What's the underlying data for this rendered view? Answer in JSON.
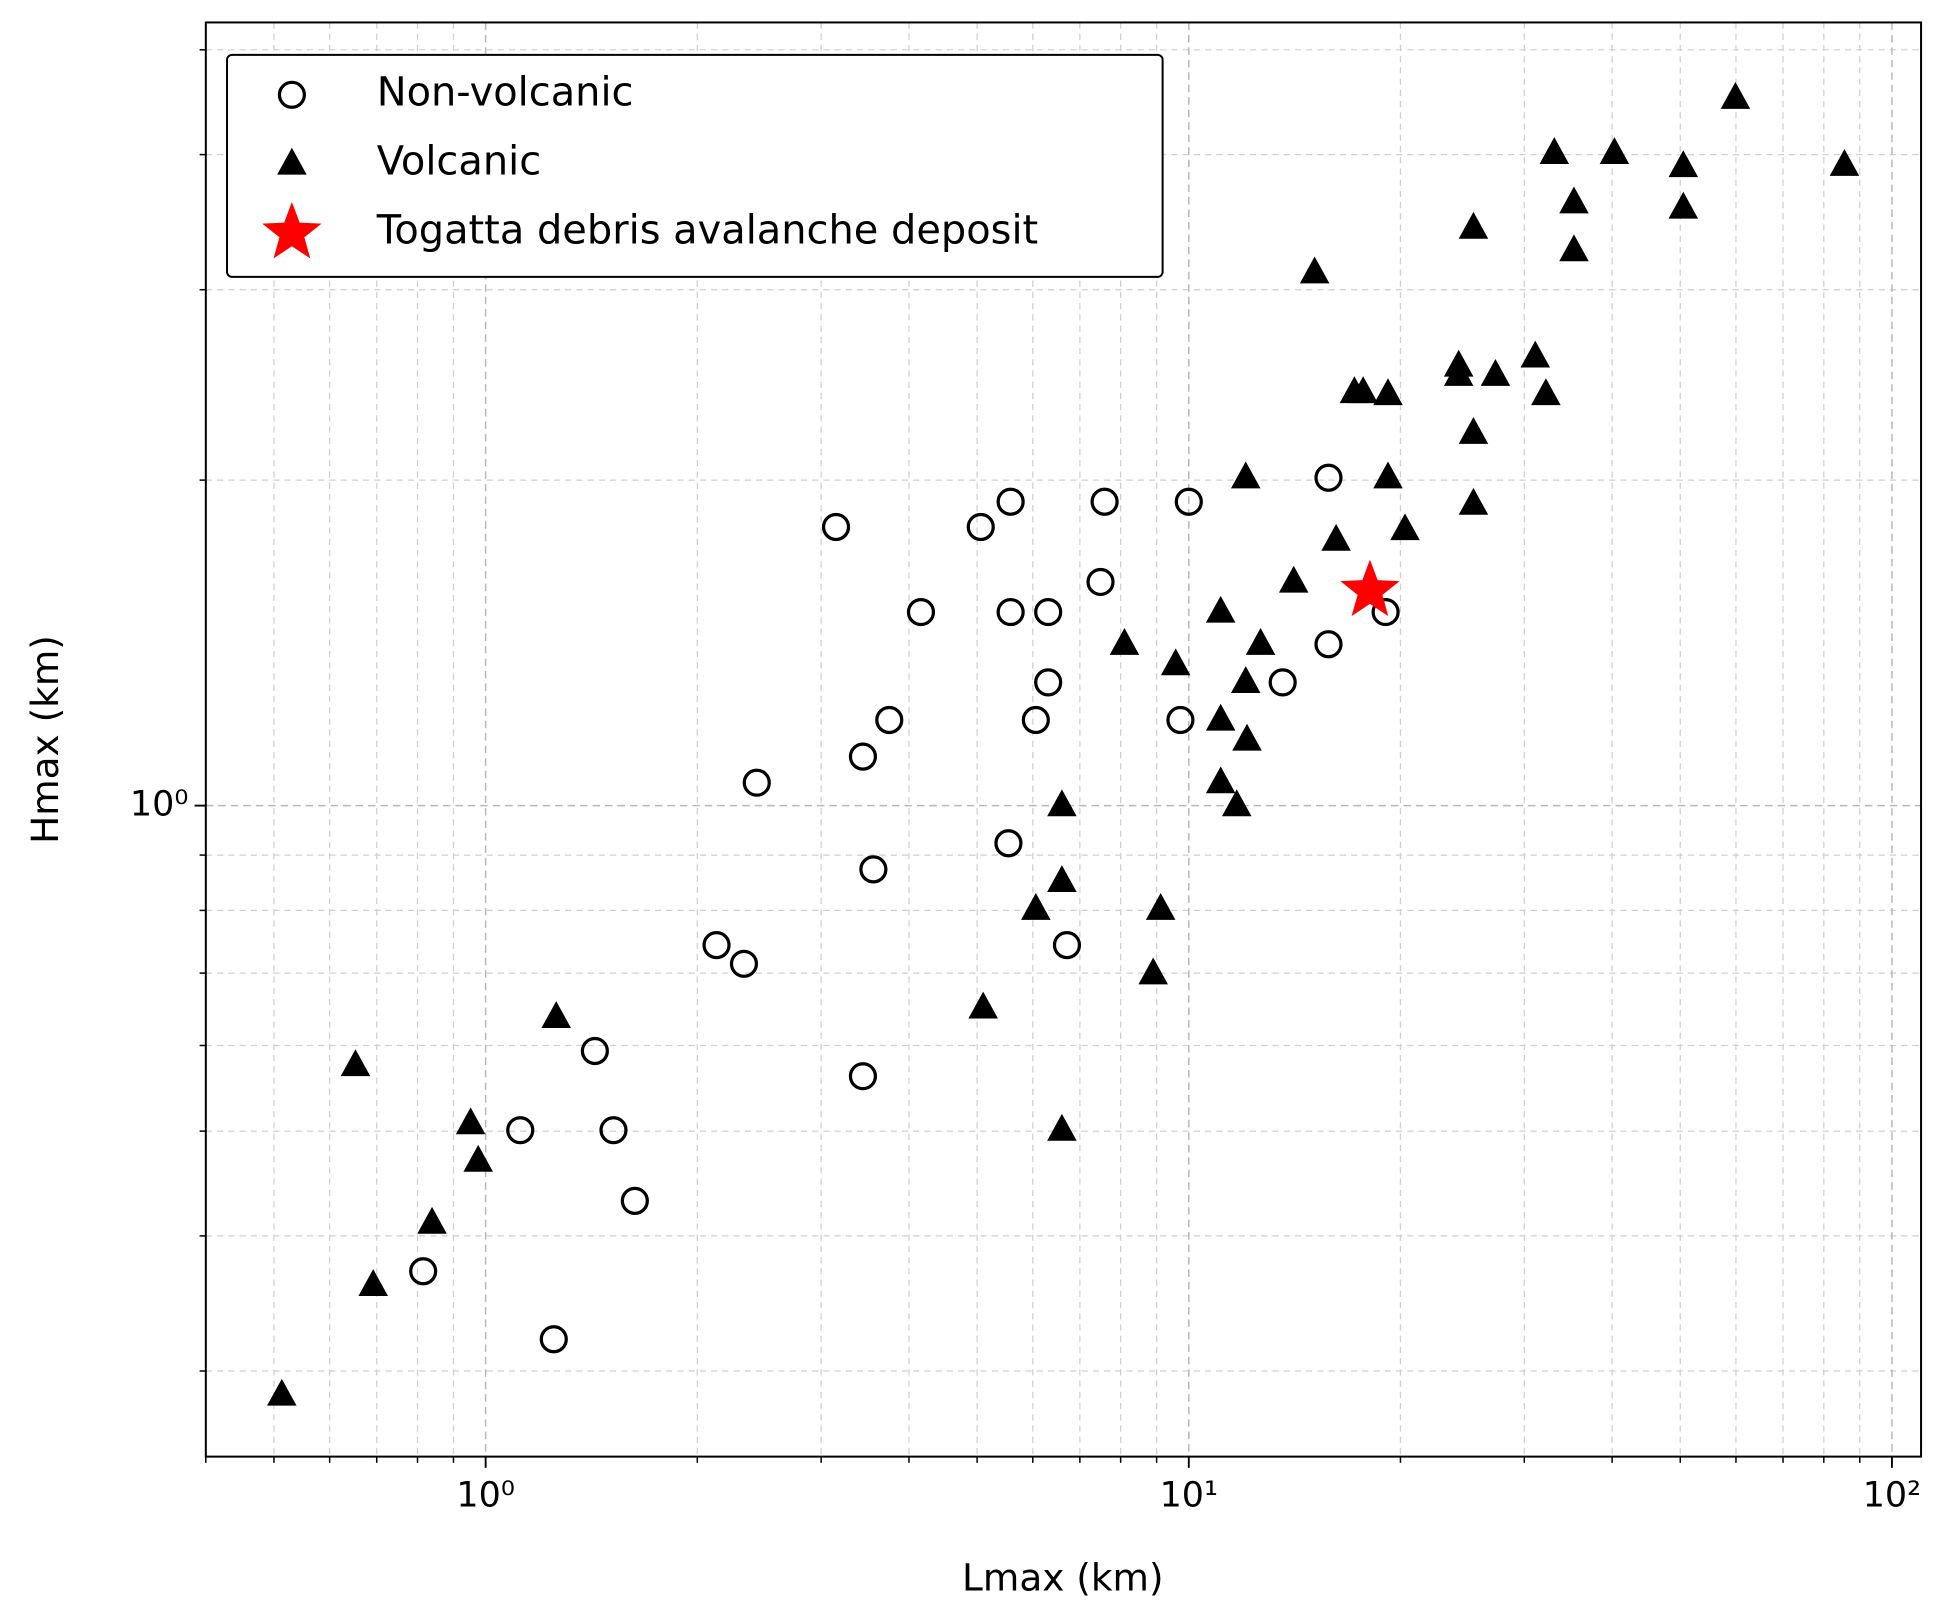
{
  "chart_data": {
    "type": "scatter",
    "xlabel": "Lmax (km)",
    "ylabel": "Hmax (km)",
    "xscale": "log",
    "yscale": "log",
    "grid": true,
    "minor_grid": true,
    "legend": "upper left",
    "xlim": [
      0.4,
      110
    ],
    "ylim": [
      0.25,
      5.3
    ],
    "xticks": [
      {
        "value": 1,
        "label": "10⁰"
      },
      {
        "value": 10,
        "label": "10¹"
      },
      {
        "value": 100,
        "label": "10²"
      }
    ],
    "yticks": [
      {
        "value": 1,
        "label": "10⁰"
      }
    ],
    "series": [
      {
        "name": "Non-volcanic",
        "marker": "circle",
        "color": "#000000",
        "x": [
          3.15,
          4.16,
          5.06,
          5.58,
          5.58,
          6.31,
          7.59,
          7.49,
          10.0,
          6.31,
          6.06,
          3.75,
          3.44,
          2.43,
          5.54,
          3.56,
          6.71,
          2.13,
          2.33,
          1.43,
          3.44,
          1.12,
          1.52,
          1.63,
          0.815,
          1.25,
          15.8,
          19.05,
          15.8,
          13.6,
          9.73
        ],
        "y": [
          1.81,
          1.51,
          1.81,
          1.91,
          1.51,
          1.51,
          1.91,
          1.61,
          1.91,
          1.3,
          1.2,
          1.2,
          1.11,
          1.05,
          0.923,
          0.873,
          0.743,
          0.743,
          0.714,
          0.593,
          0.562,
          0.501,
          0.501,
          0.431,
          0.371,
          0.321,
          2.01,
          1.51,
          1.41,
          1.3,
          1.2
        ]
      },
      {
        "name": "Volcanic",
        "marker": "triangle",
        "color": "#000000",
        "x": [
          59.9,
          33.1,
          40.3,
          50.5,
          85.6,
          35.3,
          50.5,
          25.4,
          35.3,
          15.1,
          31.1,
          24.2,
          27.3,
          24.2,
          17.2,
          17.7,
          19.2,
          32.2,
          25.4,
          12.05,
          19.2,
          25.4,
          20.3,
          16.2,
          14.1,
          11.1,
          8.1,
          12.65,
          9.58,
          12.05,
          11.1,
          12.1,
          11.1,
          11.7,
          6.6,
          6.6,
          6.06,
          9.12,
          8.9,
          5.1,
          1.26,
          0.653,
          0.952,
          0.976,
          0.839,
          0.692,
          6.6,
          0.513
        ],
        "y": [
          4.51,
          4.01,
          4.01,
          3.9,
          3.91,
          3.61,
          3.57,
          3.42,
          3.26,
          3.11,
          2.6,
          2.55,
          2.5,
          2.5,
          2.41,
          2.41,
          2.4,
          2.4,
          2.21,
          2.01,
          2.01,
          1.9,
          1.8,
          1.76,
          1.61,
          1.51,
          1.41,
          1.41,
          1.35,
          1.3,
          1.2,
          1.15,
          1.05,
          1.0,
          1.0,
          0.851,
          0.802,
          0.802,
          0.699,
          0.65,
          0.637,
          0.575,
          0.508,
          0.469,
          0.411,
          0.36,
          0.501,
          0.285
        ]
      },
      {
        "name": "Togatta debris avalanche deposit",
        "marker": "star",
        "color": "#ff0000",
        "x": [
          18.1
        ],
        "y": [
          1.58
        ]
      }
    ]
  }
}
